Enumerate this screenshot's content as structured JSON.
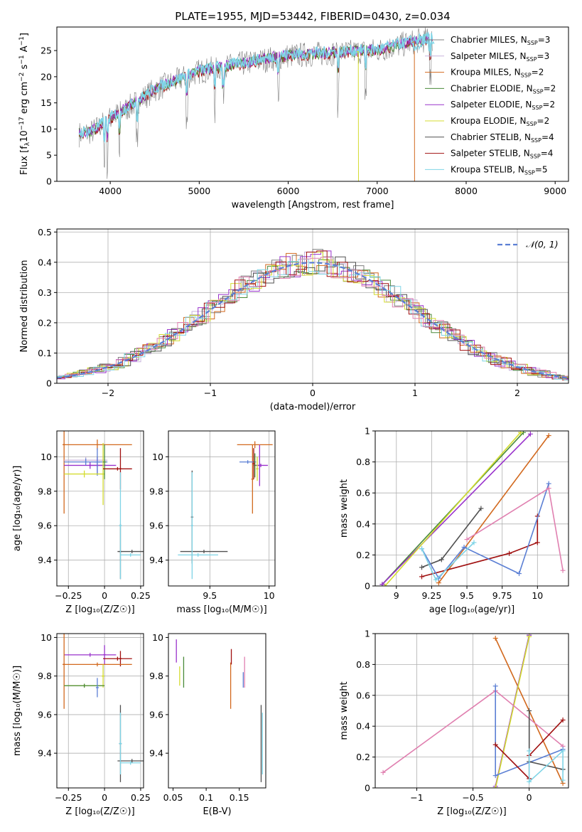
{
  "figure_title": "PLATE=1955, MJD=53442, FIBERID=0430, z=0.034",
  "colors": {
    "chabrier_miles": "#808080",
    "salpeter_miles": "#c8b4dc",
    "kroupa_miles": "#d2691e",
    "chabrier_elodie": "#4a8a3a",
    "salpeter_elodie": "#9932cc",
    "kroupa_elodie": "#d4dc30",
    "chabrier_stelib": "#505050",
    "salpeter_stelib": "#a01010",
    "kroupa_stelib": "#7fd4e6",
    "extra_blue": "#5b7fd4",
    "extra_pink": "#e080b0",
    "grid": "#b0b0b0"
  },
  "chart_data": [
    {
      "id": "spectrum",
      "type": "line",
      "xlabel": "wavelength [Angstrom, rest frame]",
      "ylabel": "Flux [f",
      "xlim": [
        3400,
        9150
      ],
      "ylim": [
        0,
        29.5
      ],
      "xticks": [
        4000,
        5000,
        6000,
        7000,
        8000,
        9000
      ],
      "yticks": [
        0,
        5,
        10,
        15,
        20,
        25
      ],
      "grid": false,
      "legend_position": "top-right",
      "legend": [
        {
          "label": "Chabrier MILES, N",
          "n": "3",
          "color_key": "chabrier_miles"
        },
        {
          "label": "Salpeter MILES, N",
          "n": "3",
          "color_key": "salpeter_miles"
        },
        {
          "label": "Kroupa MILES, N",
          "n": "2",
          "color_key": "kroupa_miles"
        },
        {
          "label": "Chabrier ELODIE, N",
          "n": "2",
          "color_key": "chabrier_elodie"
        },
        {
          "label": "Salpeter ELODIE, N",
          "n": "2",
          "color_key": "salpeter_elodie"
        },
        {
          "label": "Kroupa ELODIE, N",
          "n": "2",
          "color_key": "kroupa_elodie"
        },
        {
          "label": "Chabrier STELIB, N",
          "n": "4",
          "color_key": "chabrier_stelib"
        },
        {
          "label": "Salpeter STELIB, N",
          "n": "4",
          "color_key": "salpeter_stelib"
        },
        {
          "label": "Kroupa STELIB, N",
          "n": "5",
          "color_key": "kroupa_stelib"
        }
      ],
      "trend": {
        "x": [
          3650,
          3800,
          4000,
          4200,
          4500,
          5000,
          5500,
          6000,
          6500,
          7000,
          7500,
          7600
        ],
        "y": [
          9,
          9.5,
          12,
          14,
          17.5,
          21,
          22.5,
          24,
          24.5,
          25,
          27,
          27
        ]
      },
      "kroupa_elodie_drop_x": 6790,
      "kroupa_miles_drop_x": 7420
    },
    {
      "id": "residuals",
      "type": "step",
      "xlabel": "(data-model)/error",
      "ylabel": "Normed distribution",
      "xlim": [
        -2.5,
        2.5
      ],
      "ylim": [
        0,
        0.51
      ],
      "xticks": [
        -2,
        -1,
        0,
        1,
        2
      ],
      "yticks": [
        0.0,
        0.1,
        0.2,
        0.3,
        0.4,
        0.5
      ],
      "grid": true,
      "legend_position": "top-right",
      "legend": [
        {
          "label": "𝒩(0, 1)",
          "color_key": "extra_blue"
        }
      ]
    },
    {
      "id": "age_vs_Z",
      "type": "errorbar",
      "xlabel": "Z [log₁₀(Z/Z☉)]",
      "ylabel": "age  [log₁₀(age/yr)]",
      "xlim": [
        -0.33,
        0.27
      ],
      "ylim": [
        9.25,
        10.15
      ],
      "xticks": [
        -0.25,
        0.0,
        0.25
      ],
      "yticks": [
        9.4,
        9.6,
        9.8,
        10.0
      ],
      "grid": true,
      "points": [
        {
          "x": -0.05,
          "xerr": 0.24,
          "y": 10.07,
          "yerr": 0.03,
          "color_key": "kroupa_miles"
        },
        {
          "x": -0.28,
          "xerr": 0.01,
          "y": 10.07,
          "yerr": 0.4,
          "color_key": "kroupa_miles"
        },
        {
          "x": -0.13,
          "xerr": 0.15,
          "y": 9.98,
          "yerr": 0.02,
          "color_key": "salpeter_miles"
        },
        {
          "x": -0.1,
          "xerr": 0.18,
          "y": 9.95,
          "yerr": 0.02,
          "color_key": "salpeter_elodie"
        },
        {
          "x": -0.05,
          "xerr": 0.06,
          "y": 9.95,
          "yerr": 0.05,
          "color_key": "salpeter_elodie"
        },
        {
          "x": -0.13,
          "xerr": 0.15,
          "y": 9.97,
          "yerr": 0.02,
          "color_key": "extra_blue"
        },
        {
          "x": -0.05,
          "xerr": 0.02,
          "y": 9.97,
          "yerr": 0.08,
          "color_key": "extra_blue"
        },
        {
          "x": -0.14,
          "xerr": 0.14,
          "y": 9.9,
          "yerr": 0.02,
          "color_key": "kroupa_elodie"
        },
        {
          "x": -0.01,
          "xerr": 0.01,
          "y": 9.9,
          "yerr": 0.18,
          "color_key": "kroupa_elodie"
        },
        {
          "x": 0.0,
          "xerr": 0.01,
          "y": 9.97,
          "yerr": 0.1,
          "color_key": "chabrier_elodie"
        },
        {
          "x": 0.09,
          "xerr": 0.1,
          "y": 9.93,
          "yerr": 0.01,
          "color_key": "salpeter_stelib"
        },
        {
          "x": 0.11,
          "xerr": 0.01,
          "y": 9.93,
          "yerr": 0.12,
          "color_key": "salpeter_stelib"
        },
        {
          "x": 0.19,
          "xerr": 0.1,
          "y": 9.45,
          "yerr": 0.01,
          "color_key": "chabrier_stelib"
        },
        {
          "x": 0.11,
          "xerr": 0.01,
          "y": 9.45,
          "yerr": 0.16,
          "color_key": "chabrier_stelib"
        },
        {
          "x": 0.18,
          "xerr": 0.07,
          "y": 9.43,
          "yerr": 0.01,
          "color_key": "kroupa_stelib"
        },
        {
          "x": 0.11,
          "xerr": 0.01,
          "y": 9.6,
          "yerr": 0.31,
          "color_key": "kroupa_stelib"
        }
      ]
    },
    {
      "id": "age_vs_mass",
      "type": "errorbar",
      "xlabel": "mass [log₁₀(M/M☉)]",
      "ylabel": "",
      "xlim": [
        9.15,
        10.05
      ],
      "ylim": [
        9.25,
        10.15
      ],
      "xticks": [
        9.5,
        10.0
      ],
      "yticks": [
        9.4,
        9.6,
        9.8,
        10.0
      ],
      "grid": true,
      "points": [
        {
          "x": 9.88,
          "xerr": 0.15,
          "y": 10.07,
          "yerr": 0.02,
          "color_key": "kroupa_miles"
        },
        {
          "x": 9.86,
          "xerr": 0.01,
          "y": 9.87,
          "yerr": 0.2,
          "color_key": "kroupa_miles"
        },
        {
          "x": 9.93,
          "xerr": 0.06,
          "y": 9.95,
          "yerr": 0.01,
          "color_key": "salpeter_elodie"
        },
        {
          "x": 9.92,
          "xerr": 0.01,
          "y": 9.95,
          "yerr": 0.12,
          "color_key": "salpeter_elodie"
        },
        {
          "x": 9.82,
          "xerr": 0.07,
          "y": 9.97,
          "yerr": 0.01,
          "color_key": "extra_blue"
        },
        {
          "x": 9.88,
          "xerr": 0.01,
          "y": 9.95,
          "yerr": 0.07,
          "color_key": "chabrier_elodie"
        },
        {
          "x": 9.9,
          "xerr": 0.01,
          "y": 9.93,
          "yerr": 0.07,
          "color_key": "kroupa_elodie"
        },
        {
          "x": 9.87,
          "xerr": 0.01,
          "y": 9.96,
          "yerr": 0.09,
          "color_key": "salpeter_stelib"
        },
        {
          "x": 9.45,
          "xerr": 0.2,
          "y": 9.45,
          "yerr": 0.01,
          "color_key": "chabrier_stelib"
        },
        {
          "x": 9.35,
          "xerr": 0.01,
          "y": 9.65,
          "yerr": 0.27,
          "color_key": "chabrier_stelib"
        },
        {
          "x": 9.4,
          "xerr": 0.17,
          "y": 9.43,
          "yerr": 0.01,
          "color_key": "kroupa_stelib"
        },
        {
          "x": 9.35,
          "xerr": 0.01,
          "y": 9.6,
          "yerr": 0.31,
          "color_key": "kroupa_stelib"
        }
      ]
    },
    {
      "id": "weight_vs_age",
      "type": "line",
      "xlabel": "age  [log₁₀(age/yr)]",
      "ylabel": "mass weight",
      "xlim": [
        8.85,
        10.22
      ],
      "ylim": [
        0,
        1
      ],
      "xticks": [
        9.0,
        9.25,
        9.5,
        9.75,
        10.0
      ],
      "yticks": [
        0.0,
        0.2,
        0.4,
        0.6,
        0.8,
        1.0
      ],
      "grid": true,
      "series": [
        {
          "color_key": "chabrier_elodie",
          "x": [
            8.9,
            9.9
          ],
          "y": [
            0.01,
            0.99
          ]
        },
        {
          "color_key": "salpeter_elodie",
          "x": [
            8.9,
            9.95
          ],
          "y": [
            0.01,
            0.98
          ]
        },
        {
          "color_key": "kroupa_elodie",
          "x": [
            8.92,
            9.88
          ],
          "y": [
            0.0,
            0.99
          ]
        },
        {
          "color_key": "kroupa_miles",
          "x": [
            9.3,
            10.08
          ],
          "y": [
            0.02,
            0.97
          ]
        },
        {
          "color_key": "chabrier_stelib",
          "x": [
            9.18,
            9.32,
            9.6
          ],
          "y": [
            0.12,
            0.17,
            0.5
          ]
        },
        {
          "color_key": "salpeter_stelib",
          "x": [
            9.18,
            9.8,
            10.0,
            10.0
          ],
          "y": [
            0.06,
            0.21,
            0.28,
            0.45
          ]
        },
        {
          "color_key": "extra_blue",
          "x": [
            9.18,
            9.3,
            9.48,
            9.87,
            10.08
          ],
          "y": [
            0.24,
            0.05,
            0.25,
            0.08,
            0.66
          ]
        },
        {
          "color_key": "extra_pink",
          "x": [
            9.5,
            10.08,
            10.18
          ],
          "y": [
            0.3,
            0.63,
            0.1
          ]
        },
        {
          "color_key": "kroupa_stelib",
          "x": [
            9.18,
            9.28,
            9.55
          ],
          "y": [
            0.24,
            0.04,
            0.28
          ]
        }
      ]
    },
    {
      "id": "mass_vs_Z",
      "type": "errorbar",
      "xlabel": "Z [log₁₀(Z/Z☉)]",
      "ylabel": "mass [log₁₀(M/M☉)]",
      "xlim": [
        -0.33,
        0.27
      ],
      "ylim": [
        9.22,
        10.02
      ],
      "xticks": [
        -0.25,
        0.0,
        0.25
      ],
      "yticks": [
        9.4,
        9.6,
        9.8,
        10.0
      ],
      "grid": true,
      "points": [
        {
          "x": -0.1,
          "xerr": 0.18,
          "y": 9.91,
          "yerr": 0.01,
          "color_key": "salpeter_elodie"
        },
        {
          "x": 0.0,
          "xerr": 0.01,
          "y": 9.91,
          "yerr": 0.05,
          "color_key": "salpeter_elodie"
        },
        {
          "x": 0.09,
          "xerr": 0.1,
          "y": 9.89,
          "yerr": 0.01,
          "color_key": "salpeter_stelib"
        },
        {
          "x": 0.11,
          "xerr": 0.01,
          "y": 9.89,
          "yerr": 0.04,
          "color_key": "salpeter_stelib"
        },
        {
          "x": -0.05,
          "xerr": 0.24,
          "y": 9.86,
          "yerr": 0.01,
          "color_key": "kroupa_miles"
        },
        {
          "x": -0.28,
          "xerr": 0.01,
          "y": 9.86,
          "yerr": 0.23,
          "color_key": "kroupa_miles"
        },
        {
          "x": -0.14,
          "xerr": 0.14,
          "y": 9.75,
          "yerr": 0.01,
          "color_key": "kroupa_elodie"
        },
        {
          "x": -0.01,
          "xerr": 0.01,
          "y": 9.8,
          "yerr": 0.06,
          "color_key": "kroupa_elodie"
        },
        {
          "x": -0.14,
          "xerr": 0.14,
          "y": 9.75,
          "yerr": 0.01,
          "color_key": "chabrier_elodie"
        },
        {
          "x": -0.05,
          "xerr": 0.01,
          "y": 9.74,
          "yerr": 0.05,
          "color_key": "extra_blue"
        },
        {
          "x": 0.19,
          "xerr": 0.1,
          "y": 9.36,
          "yerr": 0.01,
          "color_key": "chabrier_stelib"
        },
        {
          "x": 0.11,
          "xerr": 0.01,
          "y": 9.45,
          "yerr": 0.2,
          "color_key": "chabrier_stelib"
        },
        {
          "x": 0.18,
          "xerr": 0.07,
          "y": 9.35,
          "yerr": 0.01,
          "color_key": "kroupa_stelib"
        },
        {
          "x": 0.11,
          "xerr": 0.01,
          "y": 9.45,
          "yerr": 0.16,
          "color_key": "kroupa_stelib"
        }
      ]
    },
    {
      "id": "mass_vs_ebv",
      "type": "errorbar",
      "xlabel": "E(B-V)",
      "ylabel": "",
      "xlim": [
        0.043,
        0.19
      ],
      "ylim": [
        9.22,
        10.02
      ],
      "xticks": [
        0.05,
        0.1,
        0.15
      ],
      "yticks": [
        9.4,
        9.6,
        9.8,
        10.0
      ],
      "grid": false,
      "points": [
        {
          "x": 0.055,
          "xerr": 0,
          "y": 9.93,
          "yerr": 0.06,
          "color_key": "salpeter_elodie"
        },
        {
          "x": 0.06,
          "xerr": 0,
          "y": 9.8,
          "yerr": 0.05,
          "color_key": "kroupa_elodie"
        },
        {
          "x": 0.066,
          "xerr": 0,
          "y": 9.82,
          "yerr": 0.08,
          "color_key": "chabrier_elodie"
        },
        {
          "x": 0.137,
          "xerr": 0,
          "y": 9.75,
          "yerr": 0.12,
          "color_key": "kroupa_miles"
        },
        {
          "x": 0.138,
          "xerr": 0,
          "y": 9.9,
          "yerr": 0.04,
          "color_key": "salpeter_stelib"
        },
        {
          "x": 0.156,
          "xerr": 0,
          "y": 9.78,
          "yerr": 0.04,
          "color_key": "extra_blue"
        },
        {
          "x": 0.158,
          "xerr": 0,
          "y": 9.82,
          "yerr": 0.08,
          "color_key": "extra_pink"
        },
        {
          "x": 0.183,
          "xerr": 0,
          "y": 9.45,
          "yerr": 0.2,
          "color_key": "chabrier_stelib"
        },
        {
          "x": 0.185,
          "xerr": 0,
          "y": 9.45,
          "yerr": 0.16,
          "color_key": "kroupa_stelib"
        }
      ]
    },
    {
      "id": "weight_vs_Z",
      "type": "line",
      "xlabel": "Z [log₁₀(Z/Z☉)]",
      "ylabel": "mass weight",
      "xlim": [
        -1.37,
        0.35
      ],
      "ylim": [
        0,
        1
      ],
      "xticks": [
        -1.0,
        -0.5,
        0.0
      ],
      "yticks": [
        0.0,
        0.2,
        0.4,
        0.6,
        0.8,
        1.0
      ],
      "grid": true,
      "series": [
        {
          "color_key": "kroupa_miles",
          "x": [
            -0.3,
            0.3
          ],
          "y": [
            0.97,
            0.03
          ]
        },
        {
          "color_key": "chabrier_elodie",
          "x": [
            -0.3,
            0.0
          ],
          "y": [
            0.0,
            0.99
          ]
        },
        {
          "color_key": "salpeter_elodie",
          "x": [
            -0.3,
            0.0
          ],
          "y": [
            0.01,
            0.99
          ]
        },
        {
          "color_key": "kroupa_elodie",
          "x": [
            -0.3,
            0.0
          ],
          "y": [
            0.0,
            0.98
          ]
        },
        {
          "color_key": "extra_pink",
          "x": [
            -1.3,
            -0.3,
            0.3
          ],
          "y": [
            0.1,
            0.63,
            0.27
          ]
        },
        {
          "color_key": "extra_blue",
          "x": [
            -0.3,
            -0.3,
            0.3
          ],
          "y": [
            0.66,
            0.08,
            0.25
          ]
        },
        {
          "color_key": "salpeter_stelib",
          "x": [
            -0.3,
            0.0,
            0.0,
            0.3
          ],
          "y": [
            0.28,
            0.06,
            0.21,
            0.44
          ]
        },
        {
          "color_key": "chabrier_stelib",
          "x": [
            0.0,
            0.0,
            0.3,
            0.3
          ],
          "y": [
            0.5,
            0.17,
            0.12,
            0.12
          ]
        },
        {
          "color_key": "kroupa_stelib",
          "x": [
            0.0,
            0.0,
            0.3,
            0.3
          ],
          "y": [
            0.24,
            0.04,
            0.24,
            0.05
          ]
        }
      ]
    }
  ]
}
